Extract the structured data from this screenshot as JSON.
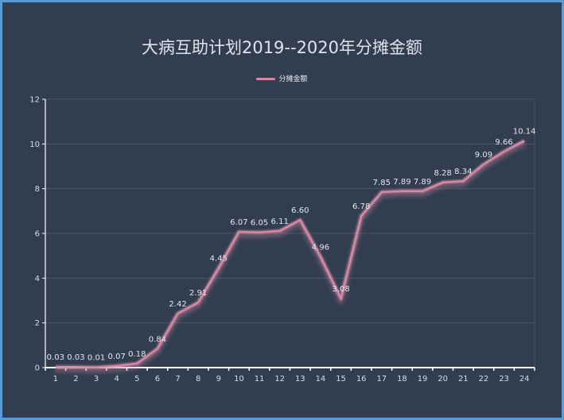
{
  "title": "大病互助计划2019--2020年分摊金额",
  "legend": {
    "label": "分摊金额",
    "color": "#d78aa4"
  },
  "colors": {
    "background": "#323e50",
    "border": "#5b9bd5",
    "line": "#d78aa4",
    "grid": "#4a5668",
    "axis": "#ffffff",
    "text": "#dfe3ea"
  },
  "chart_data": {
    "type": "line",
    "title": "大病互助计划2019--2020年分摊金额",
    "xlabel": "",
    "ylabel": "",
    "categories": [
      "1",
      "2",
      "3",
      "4",
      "5",
      "6",
      "7",
      "8",
      "9",
      "10",
      "11",
      "12",
      "13",
      "14",
      "15",
      "16",
      "17",
      "18",
      "19",
      "20",
      "21",
      "22",
      "23",
      "24"
    ],
    "series": [
      {
        "name": "分摊金额",
        "values": [
          0.03,
          0.03,
          0.01,
          0.07,
          0.18,
          0.84,
          2.42,
          2.91,
          4.45,
          6.07,
          6.05,
          6.11,
          6.6,
          4.96,
          3.08,
          6.78,
          7.85,
          7.89,
          7.89,
          8.28,
          8.34,
          9.09,
          9.66,
          10.14
        ]
      }
    ],
    "ylim": [
      0,
      12
    ],
    "yticks": [
      0,
      2,
      4,
      6,
      8,
      10,
      12
    ],
    "grid": true,
    "legend_position": "top"
  }
}
